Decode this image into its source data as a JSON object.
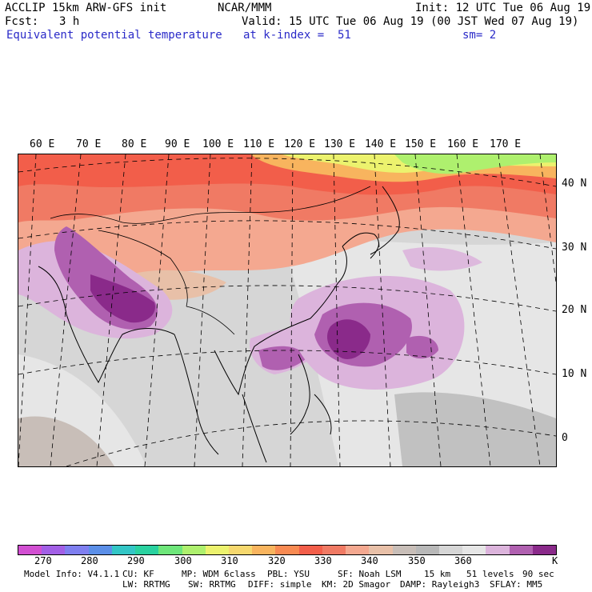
{
  "header": {
    "model_title": "ACCLIP 15km ARW-GFS init",
    "center": "NCAR/MMM",
    "init": "Init: 12 UTC Tue 06 Aug 19",
    "fcst_label": "Fcst:",
    "fcst_value": "3 h",
    "valid": "Valid: 15 UTC Tue 06 Aug 19 (00 JST Wed 07 Aug 19)",
    "field_name": "Equivalent potential temperature",
    "level": "at k-index =  51",
    "smoothing": "sm= 2"
  },
  "map": {
    "region": "South and East Asia / Western Pacific",
    "lon_labels": [
      "60 E",
      "70 E",
      "80 E",
      "90 E",
      "100 E",
      "110 E",
      "120 E",
      "130 E",
      "140 E",
      "150 E",
      "160 E",
      "170 E"
    ],
    "lat_labels": [
      "40 N",
      "30 N",
      "20 N",
      "10 N",
      "0"
    ]
  },
  "colorbar": {
    "colors": [
      "#d24fd2",
      "#a25fe6",
      "#7f7ff0",
      "#5b8fe8",
      "#33c6c6",
      "#2ad2a0",
      "#6ee67a",
      "#aef06e",
      "#ecf26e",
      "#f6d86e",
      "#f8b45e",
      "#f88a52",
      "#f25e4a",
      "#f07a64",
      "#f4a890",
      "#e8c0a8",
      "#c8beb8",
      "#b8b8b8",
      "#d6d6d6",
      "#e6e6e6",
      "#dcb4dc",
      "#b060b0",
      "#8a2a8a"
    ],
    "tick_labels": [
      "270",
      "280",
      "290",
      "300",
      "310",
      "320",
      "330",
      "340",
      "350",
      "360",
      "K"
    ]
  },
  "footer": {
    "line1": [
      "Model Info: V4.1.1",
      "CU: KF",
      "MP: WDM 6class",
      "PBL: YSU",
      "SF: Noah LSM",
      "15 km",
      "51 levels",
      "90 sec"
    ],
    "line2": [
      "LW: RRTMG",
      "SW: RRTMG",
      "DIFF: simple",
      "KM: 2D Smagor",
      "DAMP: Rayleigh3",
      "SFLAY: MM5"
    ]
  }
}
